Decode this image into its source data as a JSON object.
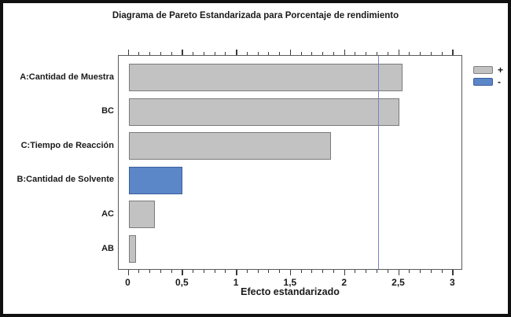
{
  "chart_data": {
    "type": "bar",
    "orientation": "horizontal",
    "title": "Diagrama de Pareto Estandarizada para Porcentaje de rendimiento",
    "xlabel": "Efecto estandarizado",
    "categories": [
      "A:Cantidad de Muestra",
      "BC",
      "C:Tiempo de Reacción",
      "B:Cantidad de Solvente",
      "AC",
      "AB"
    ],
    "values": [
      2.53,
      2.5,
      1.87,
      0.5,
      0.24,
      0.07
    ],
    "signs": [
      "+",
      "+",
      "+",
      "-",
      "+",
      "+"
    ],
    "xlim": [
      0,
      3
    ],
    "x_major_ticks": [
      0,
      0.5,
      1,
      1.5,
      2,
      2.5,
      3
    ],
    "x_tick_labels": [
      "0",
      "0,5",
      "1",
      "1,5",
      "2",
      "2,5",
      "3"
    ],
    "x_minor_step": 0.1,
    "reference_line": 2.31,
    "grid": false,
    "legend_position": "top-right",
    "legend": [
      {
        "label": "+",
        "sign": "positive",
        "color": "#c2c2c2"
      },
      {
        "label": "-",
        "sign": "negative",
        "color": "#5b86c8"
      }
    ],
    "colors": {
      "positive_bar": "#c2c2c2",
      "negative_bar": "#5b86c8",
      "reference_line": "#7283cc"
    }
  }
}
